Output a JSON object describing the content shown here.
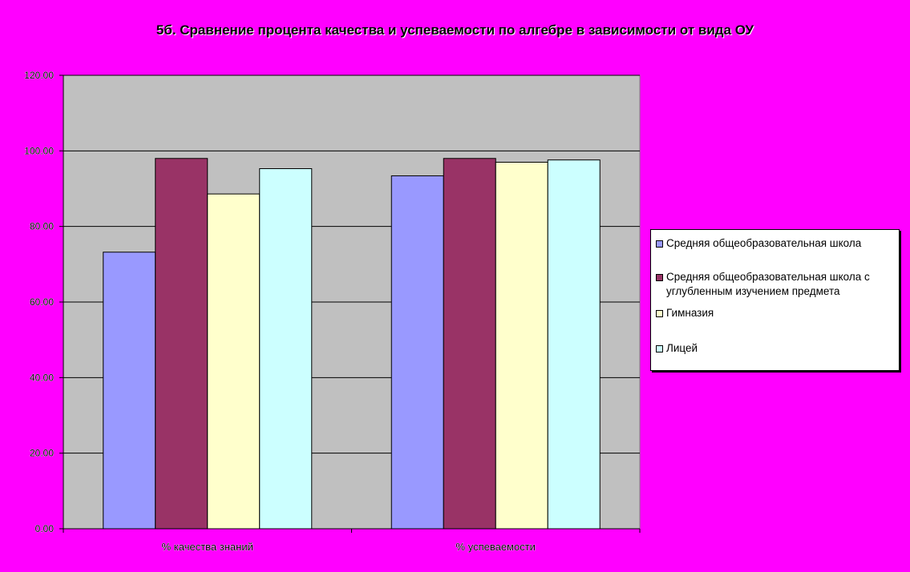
{
  "chart_data": {
    "type": "bar",
    "title": "5б. Сравнение процента качества и успеваемости по алгебре в зависимости от вида ОУ",
    "categories": [
      "% качества знаний",
      "% успеваемости"
    ],
    "series": [
      {
        "name": "Средняя общеобразовательная школа",
        "color": "#9999ff",
        "values": [
          73.2,
          93.4
        ]
      },
      {
        "name": "Средняя общеобразовательная школа с углубленным изучением предмета",
        "color": "#993366",
        "values": [
          98.0,
          98.0
        ]
      },
      {
        "name": "Гимназия",
        "color": "#ffffcc",
        "values": [
          88.6,
          97.0
        ]
      },
      {
        "name": "Лицей",
        "color": "#ccffff",
        "values": [
          95.3,
          97.6
        ]
      }
    ],
    "ylim": [
      0,
      120
    ],
    "yticks": [
      "0.00",
      "20.00",
      "40.00",
      "60.00",
      "80.00",
      "100.00",
      "120.00"
    ],
    "grid": true,
    "legend": "right",
    "plot_background": "#c0c0c0",
    "page_background": "#ff00ff"
  }
}
